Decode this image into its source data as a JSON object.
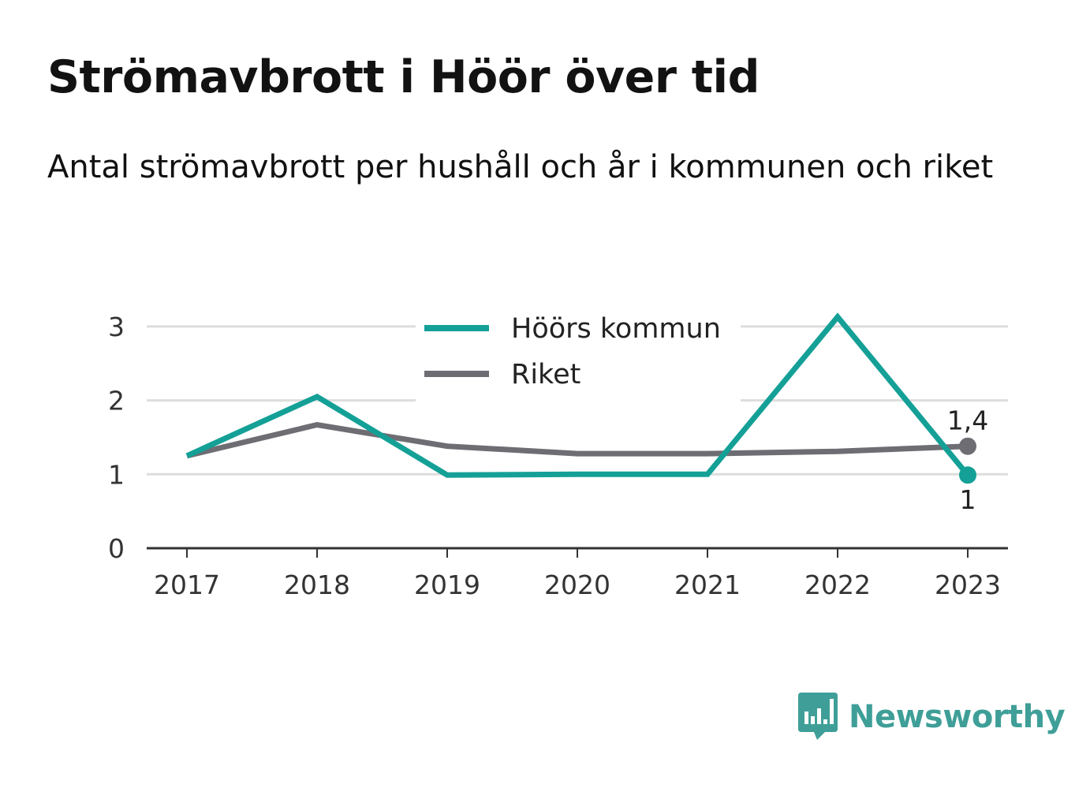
{
  "title": "Strömavbrott i Höör över tid",
  "subtitle": "Antal strömavbrott per hushåll och år i kommunen och riket",
  "brand": {
    "name": "Newsworthy",
    "icon": "bar-chart-speech-bubble-icon",
    "color": "#3f9f98"
  },
  "chart_data": {
    "type": "line",
    "x": [
      "2017",
      "2018",
      "2019",
      "2020",
      "2021",
      "2022",
      "2023"
    ],
    "yticks": [
      "0",
      "1",
      "2",
      "3"
    ],
    "ylim": [
      0,
      3.3
    ],
    "grid": true,
    "legend_position": "top-center",
    "series": [
      {
        "name": "Höörs kommun",
        "color": "#14a097",
        "values": [
          1.25,
          2.05,
          0.99,
          1.0,
          1.0,
          3.13,
          0.99
        ],
        "end_label": "1"
      },
      {
        "name": "Riket",
        "color": "#6e6d74",
        "values": [
          1.25,
          1.67,
          1.38,
          1.28,
          1.28,
          1.31,
          1.38
        ],
        "end_label": "1,4"
      }
    ]
  }
}
